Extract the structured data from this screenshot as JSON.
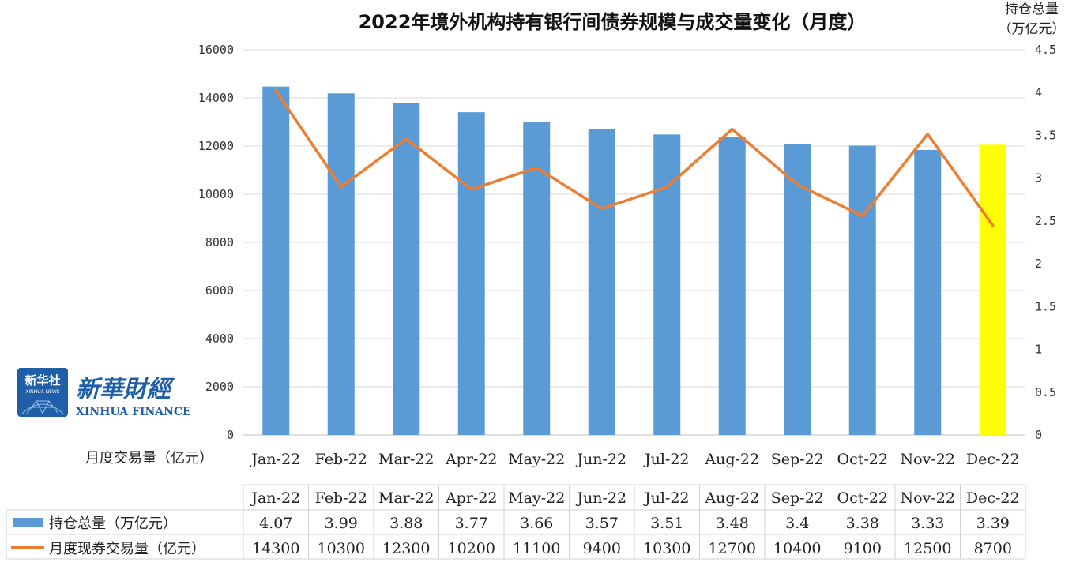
{
  "chart_data": {
    "type": "bar",
    "title": "2022年境外机构持有银行间债券规模与成交量变化（月度）",
    "ylabel": "月度交易量（亿元）",
    "y2label_line1": "持仓总量",
    "y2label_line2": "（万亿元）",
    "categories": [
      "Jan-22",
      "Feb-22",
      "Mar-22",
      "Apr-22",
      "May-22",
      "Jun-22",
      "Jul-22",
      "Aug-22",
      "Sep-22",
      "Oct-22",
      "Nov-22",
      "Dec-22"
    ],
    "ylim": [
      0,
      16000
    ],
    "y_ticks": [
      "0",
      "2000",
      "4000",
      "6000",
      "8000",
      "10000",
      "12000",
      "14000",
      "16000"
    ],
    "y2lim": [
      0,
      4.5
    ],
    "y2_ticks": [
      "0",
      "0.5",
      "1",
      "1.5",
      "2",
      "2.5",
      "3",
      "3.5",
      "4",
      "4.5"
    ],
    "series": [
      {
        "name": "持仓总量（万亿元）",
        "type": "bar",
        "axis": "right",
        "color": "#5b9bd5",
        "highlight_color": "#ffff00",
        "highlight_index": 11,
        "values": [
          4.07,
          3.99,
          3.88,
          3.77,
          3.66,
          3.57,
          3.51,
          3.48,
          3.4,
          3.38,
          3.33,
          3.39
        ],
        "labels": [
          "4.07",
          "3.99",
          "3.88",
          "3.77",
          "3.66",
          "3.57",
          "3.51",
          "3.48",
          "3.4",
          "3.38",
          "3.33",
          "3.39"
        ]
      },
      {
        "name": "月度现券交易量（亿元）",
        "type": "line",
        "axis": "left",
        "color": "#ed7d31",
        "values": [
          14300,
          10300,
          12300,
          10200,
          11100,
          9400,
          10300,
          12700,
          10400,
          9100,
          12500,
          8700
        ],
        "labels": [
          "14300",
          "10300",
          "12300",
          "10200",
          "11100",
          "9400",
          "10300",
          "12700",
          "10400",
          "9100",
          "12500",
          "8700"
        ]
      }
    ],
    "grid": true,
    "legend": "data-table"
  },
  "logo": {
    "badge_text": "新华社",
    "badge_sub": "XINHUA NEWS",
    "brand_cn": "新華財經",
    "brand_en": "XINHUA FINANCE",
    "badge_color": "#1f5fa8"
  }
}
